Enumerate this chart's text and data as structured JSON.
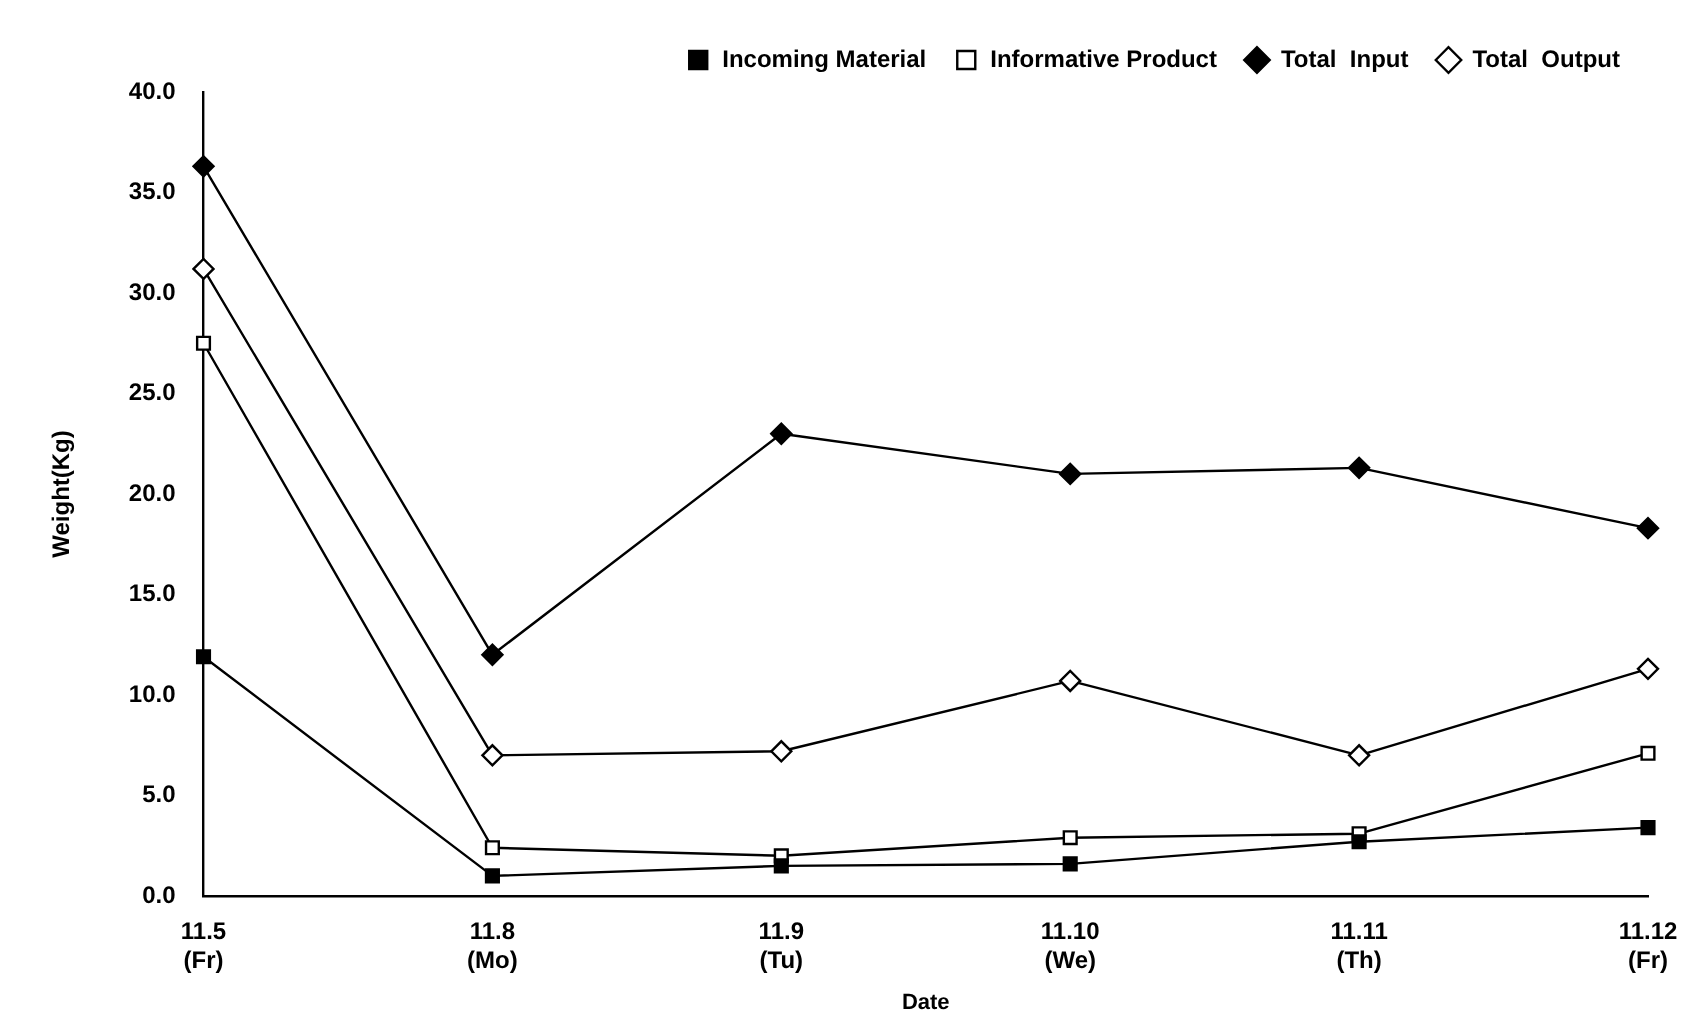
{
  "chart_data": {
    "type": "line",
    "xlabel": "Date",
    "ylabel": "Weight(Kg)",
    "categories": [
      "11.5\n(Fr)",
      "11.8\n(Mo)",
      "11.9\n(Tu)",
      "11.10\n(We)",
      "11.11\n(Th)",
      "11.12\n(Fr)"
    ],
    "ylim": [
      0,
      40
    ],
    "yticks": [
      {
        "value": 0,
        "label": "0.0"
      },
      {
        "value": 5,
        "label": "5.0"
      },
      {
        "value": 10,
        "label": "10.0"
      },
      {
        "value": 15,
        "label": "15.0"
      },
      {
        "value": 20,
        "label": "20.0"
      },
      {
        "value": 25,
        "label": "25.0"
      },
      {
        "value": 30,
        "label": "30.0"
      },
      {
        "value": 35,
        "label": "35.0"
      },
      {
        "value": 40,
        "label": "40.0"
      }
    ],
    "grid": false,
    "legend": "top right",
    "line_style": "solid",
    "series": [
      {
        "name": "Incoming Material",
        "color": "#000000",
        "marker": "square",
        "values": [
          11.9,
          1.0,
          1.5,
          1.6,
          2.7,
          3.4
        ]
      },
      {
        "name": "Informative Product",
        "color": "#000000",
        "marker": "square_open",
        "values": [
          27.5,
          2.4,
          2.0,
          2.9,
          3.1,
          7.1
        ]
      },
      {
        "name": "Total  Input",
        "color": "#000000",
        "marker": "diamond",
        "values": [
          36.3,
          12.0,
          23.0,
          21.0,
          21.3,
          18.3
        ]
      },
      {
        "name": "Total  Output",
        "color": "#000000",
        "marker": "diamond_open",
        "values": [
          31.2,
          7.0,
          7.2,
          10.7,
          7.0,
          11.3
        ]
      }
    ]
  }
}
